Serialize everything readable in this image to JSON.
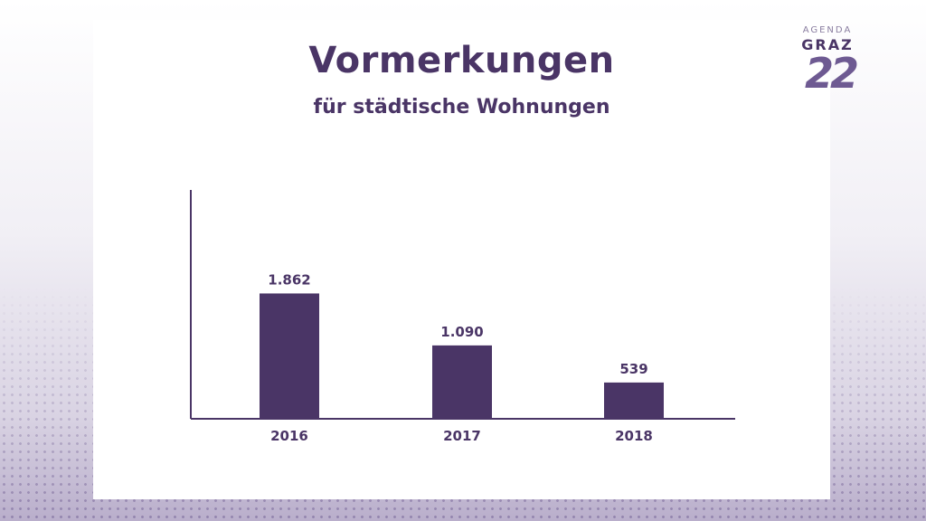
{
  "logo": {
    "line1": "AGENDA",
    "line2": "GRAZ",
    "line3": "22"
  },
  "chart_data": {
    "type": "bar",
    "title": "Vormerkungen",
    "subtitle": "für städtische Wohnungen",
    "categories": [
      "2016",
      "2017",
      "2018"
    ],
    "values": [
      1862,
      1090,
      539
    ],
    "data_labels": [
      "1.862",
      "1.090",
      "539"
    ],
    "ylim": [
      0,
      3400
    ],
    "xlabel": "",
    "ylabel": "",
    "grid": false,
    "legend": "none",
    "bar_color": "#4a3566"
  }
}
